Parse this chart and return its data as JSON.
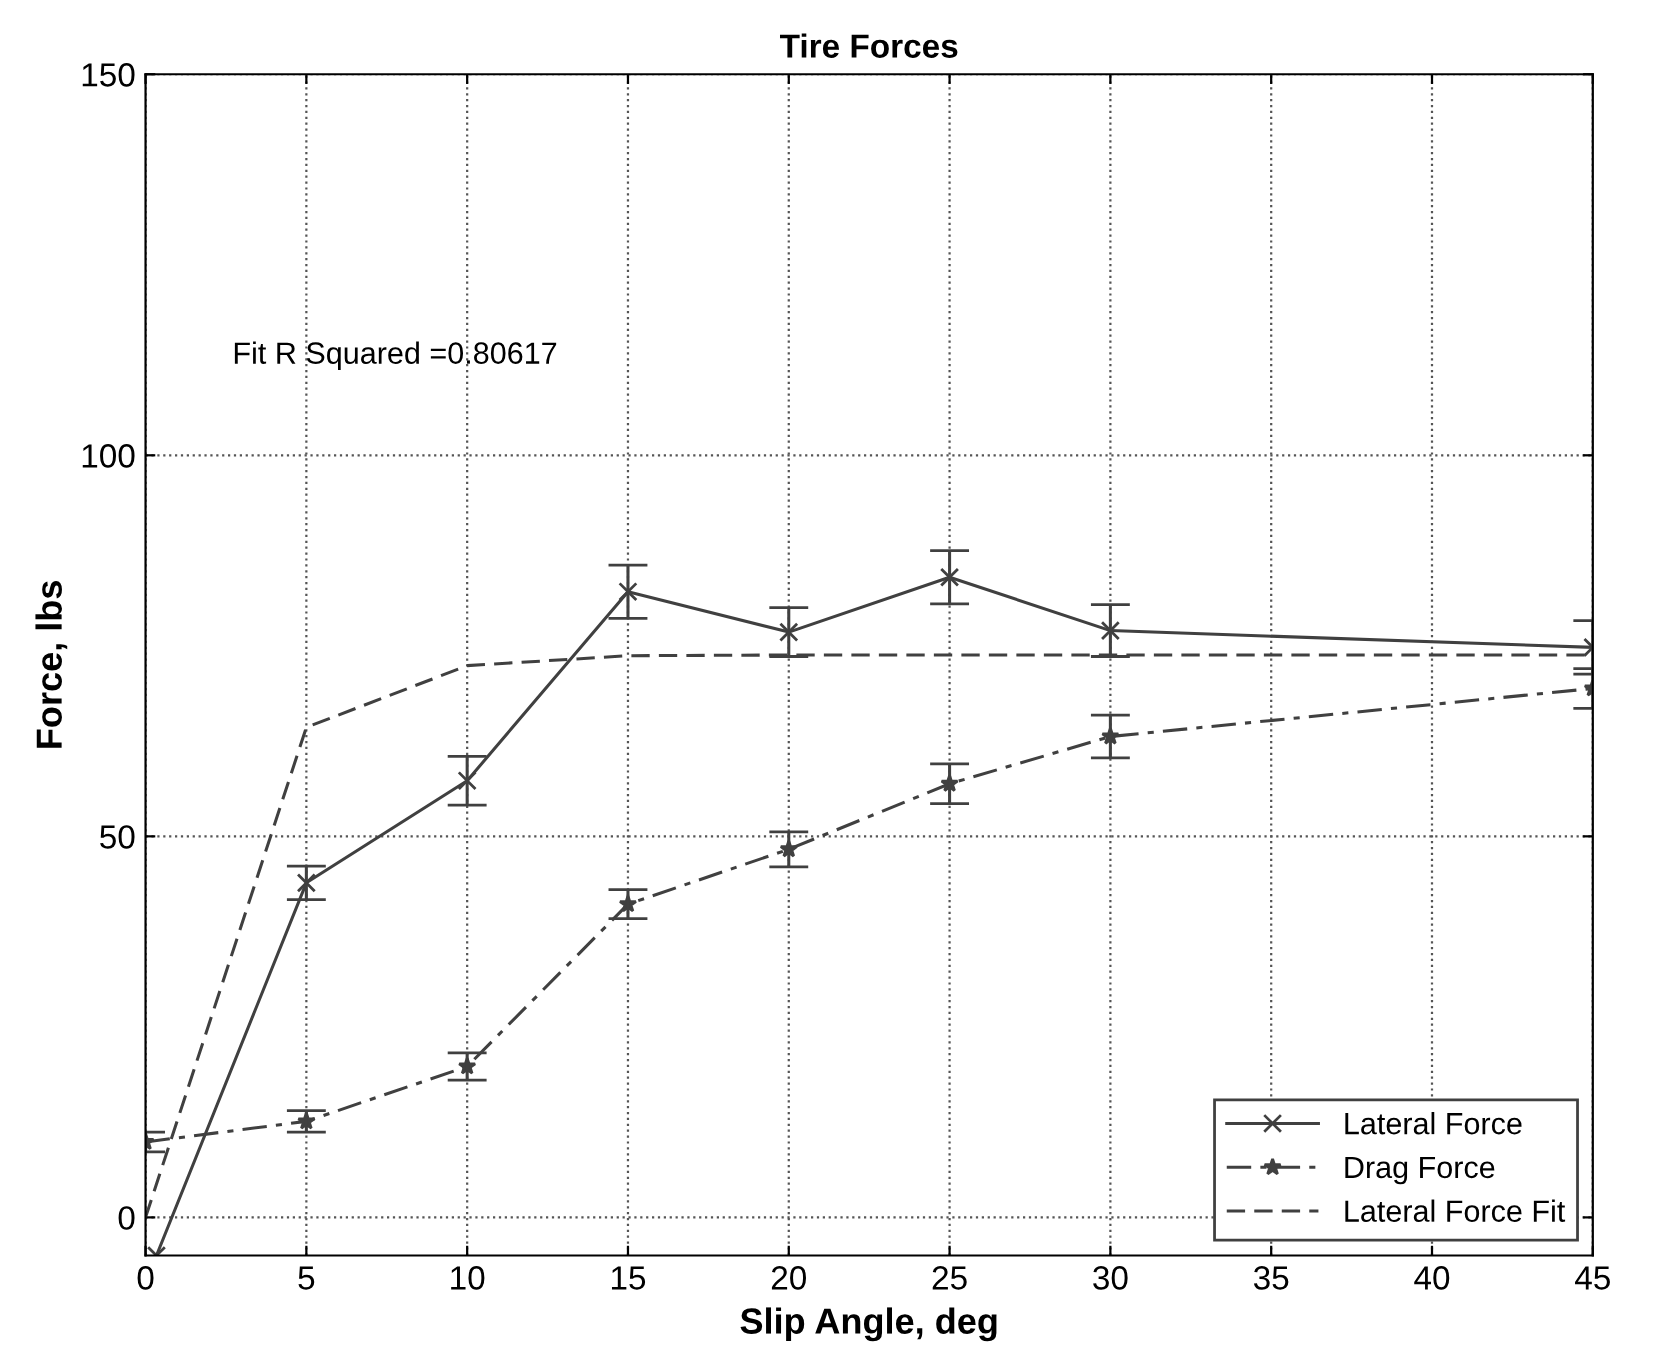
{
  "chart_data": {
    "type": "line",
    "title": "Tire Forces",
    "xlabel": "Slip Angle, deg",
    "ylabel": "Force, lbs",
    "x": [
      0,
      5,
      10,
      15,
      20,
      25,
      30,
      45
    ],
    "xlim": [
      0,
      45
    ],
    "xticks": [
      0,
      5,
      10,
      15,
      20,
      25,
      30,
      35,
      40,
      45
    ],
    "ylim": [
      -5,
      150
    ],
    "yticks": [
      0,
      50,
      100,
      150
    ],
    "grid": true,
    "legend": "bottom right",
    "annotations": [
      "Fit R Squared =0.80617"
    ],
    "series": [
      {
        "name": "Lateral Force",
        "color": "#404040",
        "marker": "cross",
        "line_style": "solid",
        "x": [
          0.34,
          5,
          10,
          15,
          20,
          25,
          30,
          45
        ],
        "values": [
          -5,
          43.9,
          57.3,
          82.1,
          76.8,
          84.0,
          77.0,
          74.8
        ],
        "errors": [
          null,
          2.2,
          3.2,
          3.5,
          3.2,
          3.5,
          3.4,
          3.5
        ]
      },
      {
        "name": "Drag Force",
        "color": "#404040",
        "marker": "star",
        "line_style": "dashdot",
        "values": [
          9.9,
          12.6,
          19.8,
          41.1,
          48.3,
          56.9,
          63.1,
          69.4
        ],
        "errors": [
          1.3,
          1.4,
          1.8,
          1.9,
          2.3,
          2.6,
          2.8,
          2.6
        ]
      },
      {
        "name": "Lateral Force Fit",
        "color": "#404040",
        "marker": "none",
        "line_style": "dashed",
        "values": [
          0,
          64.3,
          72.4,
          73.7,
          73.8,
          73.8,
          73.8,
          73.8
        ]
      }
    ]
  }
}
